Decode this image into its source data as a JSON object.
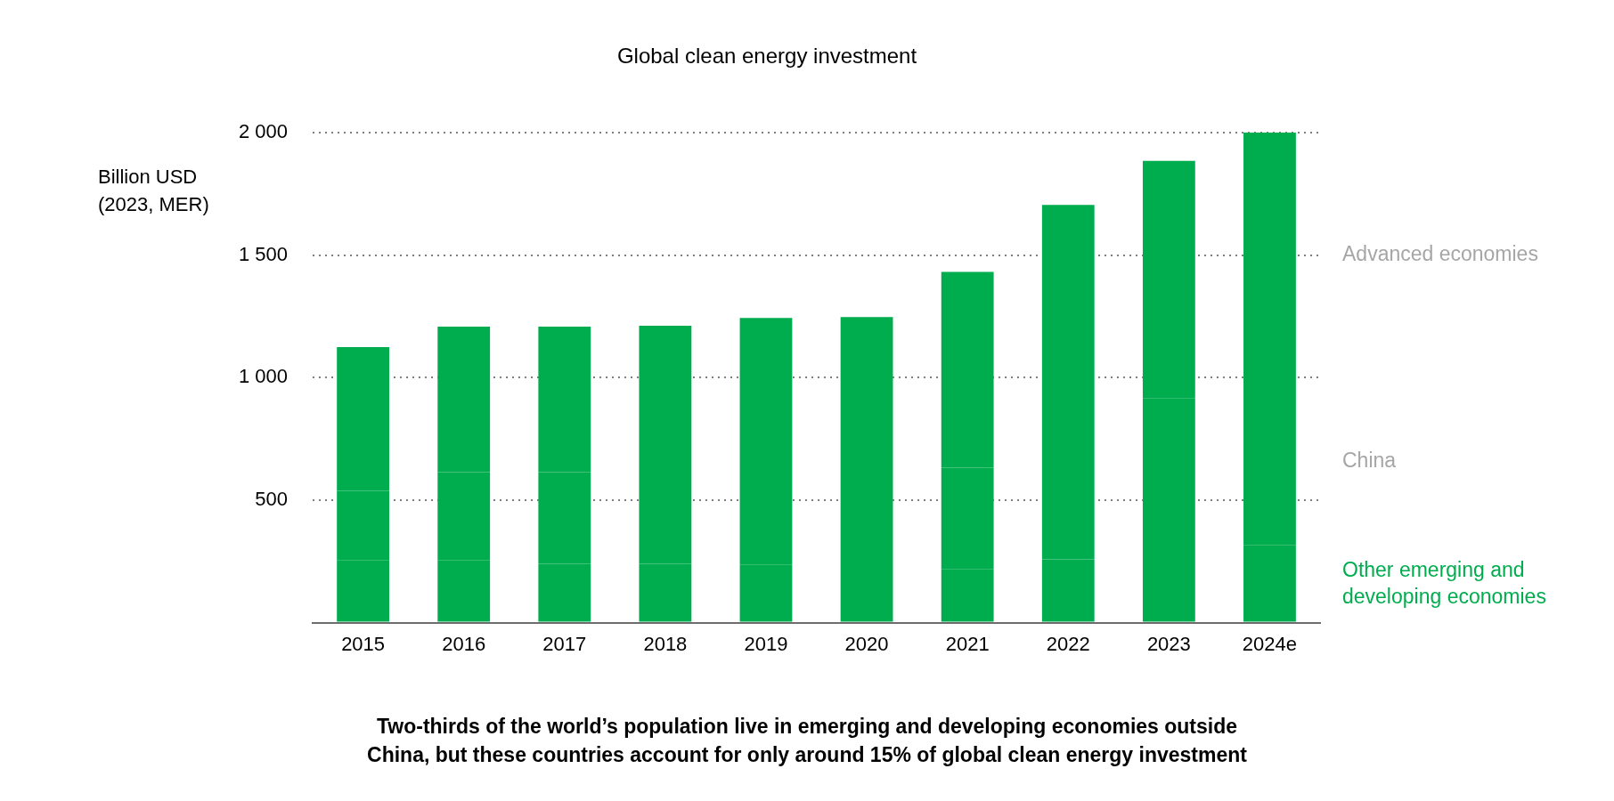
{
  "chart_data": {
    "type": "bar",
    "title": "Global clean energy investment",
    "ylabel": "Billion USD (2023, MER)",
    "categories": [
      "2015",
      "2016",
      "2017",
      "2018",
      "2019",
      "2020",
      "2021",
      "2022",
      "2023",
      "2024e"
    ],
    "stacked": true,
    "series": [
      {
        "name": "Other emerging and developing economies",
        "color": "#00ad4e",
        "values": [
          255,
          255,
          240,
          240,
          237,
          213,
          217,
          258,
          300,
          315
        ]
      },
      {
        "name": "China",
        "color": "#00ad4e",
        "values": [
          283,
          359,
          374,
          369,
          368,
          381,
          415,
          532,
          616,
          682
        ]
      },
      {
        "name": "Advanced economies",
        "color": "#00ad4e",
        "values": [
          586,
          594,
          594,
          602,
          638,
          653,
          799,
          914,
          968,
          1003
        ]
      }
    ],
    "ylim": [
      0,
      2000
    ],
    "yticks": [
      {
        "value": 0,
        "label": null
      },
      500,
      {
        "value": 1000,
        "label": "1 000"
      },
      {
        "value": 1500,
        "label": "1 500"
      },
      {
        "value": 2000,
        "label": "2 000"
      }
    ],
    "grid": "y",
    "annotations": [
      "Two-thirds of the world’s population live in emerging and developing economies outside China, but these countries account for only around 15% of global clean energy investment"
    ]
  }
}
